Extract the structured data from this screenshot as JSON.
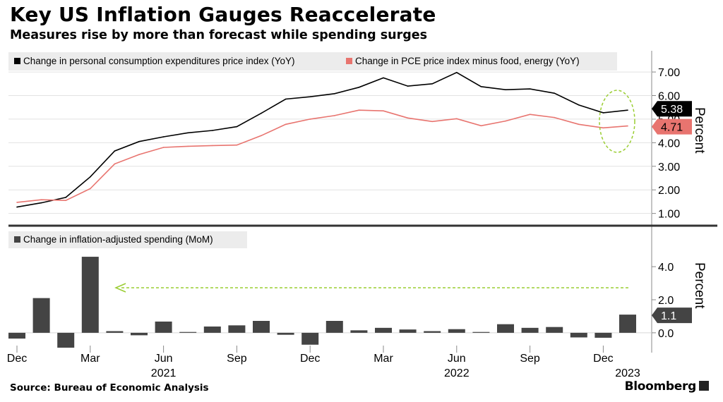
{
  "header": {
    "title": "Key US Inflation Gauges Reaccelerate",
    "subtitle": "Measures rise by more than forecast while spending surges"
  },
  "footer": {
    "source": "Source: Bureau of Economic Analysis",
    "brand": "Bloomberg"
  },
  "colors": {
    "pce": "#000000",
    "core": "#e8746f",
    "spending": "#444444",
    "highlight": "#9acd32"
  },
  "chart_data": [
    {
      "type": "line",
      "ylabel": "Percent",
      "ylim": [
        0.6,
        7.9
      ],
      "yticks": [
        "1.00",
        "2.00",
        "3.00",
        "4.00",
        "5.00",
        "6.00",
        "7.00"
      ],
      "x": [
        "2020-12",
        "2021-01",
        "2021-02",
        "2021-03",
        "2021-04",
        "2021-05",
        "2021-06",
        "2021-07",
        "2021-08",
        "2021-09",
        "2021-10",
        "2021-11",
        "2021-12",
        "2022-01",
        "2022-02",
        "2022-03",
        "2022-04",
        "2022-05",
        "2022-06",
        "2022-07",
        "2022-08",
        "2022-09",
        "2022-10",
        "2022-11",
        "2022-12",
        "2023-01"
      ],
      "series": [
        {
          "name": "Change in personal consumption expenditures price index (YoY)",
          "values": [
            1.27,
            1.45,
            1.68,
            2.55,
            3.65,
            4.05,
            4.25,
            4.42,
            4.52,
            4.68,
            5.25,
            5.85,
            5.95,
            6.08,
            6.35,
            6.75,
            6.4,
            6.5,
            6.98,
            6.38,
            6.25,
            6.28,
            6.1,
            5.6,
            5.27,
            5.38
          ],
          "end_label": "5.38"
        },
        {
          "name": "Change in PCE price index minus food, energy (YoY)",
          "values": [
            1.47,
            1.58,
            1.55,
            2.05,
            3.1,
            3.5,
            3.8,
            3.85,
            3.88,
            3.9,
            4.3,
            4.78,
            5.0,
            5.15,
            5.38,
            5.35,
            5.05,
            4.9,
            5.02,
            4.72,
            4.92,
            5.2,
            5.07,
            4.78,
            4.63,
            4.71
          ],
          "end_label": "4.71"
        }
      ]
    },
    {
      "type": "bar",
      "ylabel": "Percent",
      "ylim": [
        -1.2,
        5.2
      ],
      "yticks": [
        "0.0",
        "2.0",
        "4.0"
      ],
      "categories": [
        "2020-12",
        "2021-01",
        "2021-02",
        "2021-03",
        "2021-04",
        "2021-05",
        "2021-06",
        "2021-07",
        "2021-08",
        "2021-09",
        "2021-10",
        "2021-11",
        "2021-12",
        "2022-01",
        "2022-02",
        "2022-03",
        "2022-04",
        "2022-05",
        "2022-06",
        "2022-07",
        "2022-08",
        "2022-09",
        "2022-10",
        "2022-11",
        "2022-12",
        "2023-01"
      ],
      "series": [
        {
          "name": "Change in inflation-adjusted spending (MoM)",
          "values": [
            -0.35,
            2.1,
            -0.9,
            4.6,
            0.1,
            -0.15,
            0.68,
            0.05,
            0.38,
            0.45,
            0.72,
            -0.12,
            -0.72,
            0.72,
            0.15,
            0.3,
            0.2,
            0.1,
            0.22,
            0.05,
            0.52,
            0.3,
            0.35,
            -0.28,
            -0.3,
            1.1
          ],
          "end_label": "1.1"
        }
      ],
      "xticks": [
        "Dec",
        "Mar",
        "Jun",
        "Sep",
        "Dec",
        "Mar",
        "Jun",
        "Sep",
        "Dec"
      ],
      "years": [
        "2021",
        "2022",
        "2023"
      ]
    }
  ]
}
